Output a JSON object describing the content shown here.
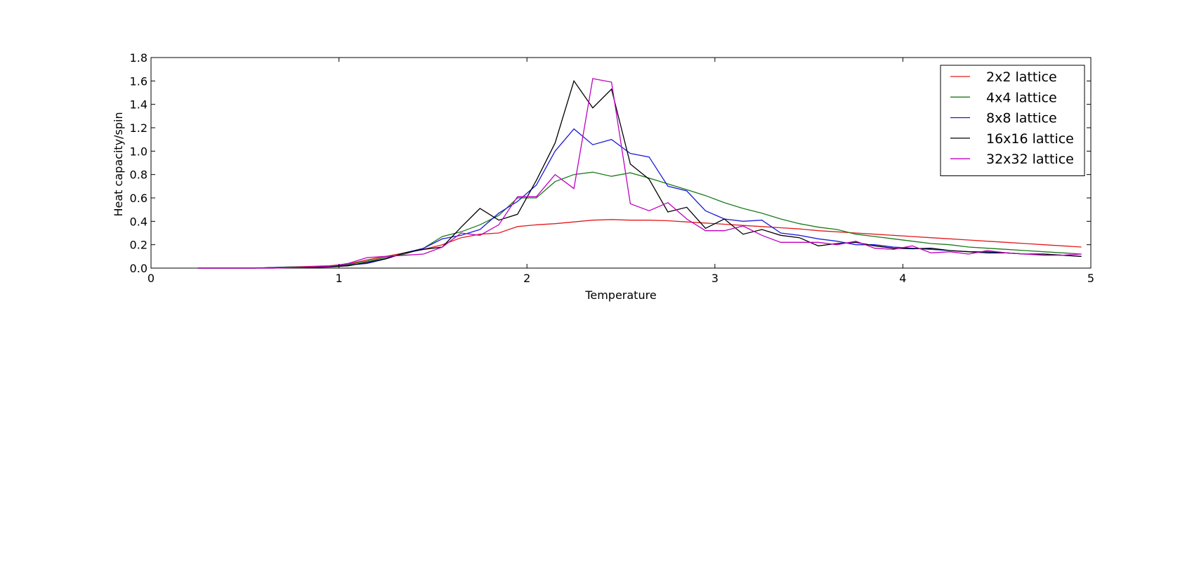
{
  "chart_data": {
    "type": "line",
    "title": "",
    "xlabel": "Temperature",
    "ylabel": "Heat capacity/spin",
    "xlim": [
      0,
      5
    ],
    "ylim": [
      0,
      1.8
    ],
    "xticks": [
      0,
      1,
      2,
      3,
      4,
      5
    ],
    "yticks": [
      0.0,
      0.2,
      0.4,
      0.6,
      0.8,
      1.0,
      1.2,
      1.4,
      1.6,
      1.8
    ],
    "xtick_labels": [
      "0",
      "1",
      "2",
      "3",
      "4",
      "5"
    ],
    "ytick_labels": [
      "0.0",
      "0.2",
      "0.4",
      "0.6",
      "0.8",
      "1.0",
      "1.2",
      "1.4",
      "1.6",
      "1.8"
    ],
    "grid": false,
    "legend_position": "top-right",
    "series": [
      {
        "name": "2x2 lattice",
        "color": "#e41a1c",
        "x": [
          0.25,
          0.35,
          0.45,
          0.55,
          0.65,
          0.75,
          0.85,
          0.95,
          1.05,
          1.15,
          1.25,
          1.35,
          1.45,
          1.55,
          1.65,
          1.75,
          1.85,
          1.95,
          2.05,
          2.15,
          2.25,
          2.35,
          2.45,
          2.55,
          2.65,
          2.75,
          2.85,
          2.95,
          3.05,
          3.15,
          3.25,
          3.35,
          3.45,
          3.55,
          3.65,
          3.75,
          3.85,
          3.95,
          4.05,
          4.15,
          4.25,
          4.35,
          4.45,
          4.55,
          4.65,
          4.75,
          4.85,
          4.95
        ],
        "y": [
          0.0,
          0.0,
          0.0,
          0.0,
          0.005,
          0.01,
          0.015,
          0.02,
          0.035,
          0.07,
          0.1,
          0.13,
          0.16,
          0.2,
          0.26,
          0.29,
          0.3,
          0.355,
          0.37,
          0.38,
          0.395,
          0.41,
          0.415,
          0.41,
          0.41,
          0.405,
          0.395,
          0.385,
          0.375,
          0.365,
          0.355,
          0.345,
          0.335,
          0.32,
          0.31,
          0.3,
          0.29,
          0.28,
          0.27,
          0.26,
          0.25,
          0.24,
          0.23,
          0.22,
          0.21,
          0.2,
          0.19,
          0.18
        ]
      },
      {
        "name": "4x4 lattice",
        "color": "#1a7a1a",
        "x": [
          0.25,
          0.35,
          0.45,
          0.55,
          0.65,
          0.75,
          0.85,
          0.95,
          1.05,
          1.15,
          1.25,
          1.35,
          1.45,
          1.55,
          1.65,
          1.75,
          1.85,
          1.95,
          2.05,
          2.15,
          2.25,
          2.35,
          2.45,
          2.55,
          2.65,
          2.75,
          2.85,
          2.95,
          3.05,
          3.15,
          3.25,
          3.35,
          3.45,
          3.55,
          3.65,
          3.75,
          3.85,
          3.95,
          4.05,
          4.15,
          4.25,
          4.35,
          4.45,
          4.55,
          4.65,
          4.75,
          4.85,
          4.95
        ],
        "y": [
          0.0,
          0.0,
          0.0,
          0.0,
          0.005,
          0.01,
          0.01,
          0.015,
          0.03,
          0.06,
          0.09,
          0.12,
          0.17,
          0.27,
          0.31,
          0.37,
          0.45,
          0.6,
          0.6,
          0.74,
          0.8,
          0.82,
          0.785,
          0.815,
          0.77,
          0.72,
          0.67,
          0.62,
          0.56,
          0.51,
          0.47,
          0.42,
          0.38,
          0.35,
          0.33,
          0.29,
          0.27,
          0.25,
          0.23,
          0.21,
          0.2,
          0.18,
          0.17,
          0.16,
          0.15,
          0.14,
          0.13,
          0.12
        ]
      },
      {
        "name": "8x8 lattice",
        "color": "#1c1cd8",
        "x": [
          0.25,
          0.35,
          0.45,
          0.55,
          0.65,
          0.75,
          0.85,
          0.95,
          1.05,
          1.15,
          1.25,
          1.35,
          1.45,
          1.55,
          1.65,
          1.75,
          1.85,
          1.95,
          2.05,
          2.15,
          2.25,
          2.35,
          2.45,
          2.55,
          2.65,
          2.75,
          2.85,
          2.95,
          3.05,
          3.15,
          3.25,
          3.35,
          3.45,
          3.55,
          3.65,
          3.75,
          3.85,
          3.95,
          4.05,
          4.15,
          4.25,
          4.35,
          4.45,
          4.55,
          4.65,
          4.75,
          4.85,
          4.95
        ],
        "y": [
          0.0,
          0.0,
          0.0,
          0.0,
          0.005,
          0.005,
          0.01,
          0.015,
          0.025,
          0.04,
          0.08,
          0.13,
          0.17,
          0.25,
          0.28,
          0.33,
          0.47,
          0.57,
          0.71,
          1.0,
          1.19,
          1.055,
          1.1,
          0.98,
          0.95,
          0.7,
          0.66,
          0.49,
          0.42,
          0.4,
          0.41,
          0.3,
          0.28,
          0.25,
          0.23,
          0.2,
          0.2,
          0.18,
          0.17,
          0.16,
          0.15,
          0.14,
          0.14,
          0.13,
          0.12,
          0.12,
          0.11,
          0.1
        ]
      },
      {
        "name": "16x16 lattice",
        "color": "#000000",
        "x": [
          0.25,
          0.35,
          0.45,
          0.55,
          0.65,
          0.75,
          0.85,
          0.95,
          1.05,
          1.15,
          1.25,
          1.35,
          1.45,
          1.55,
          1.65,
          1.75,
          1.85,
          1.95,
          2.05,
          2.15,
          2.25,
          2.35,
          2.45,
          2.55,
          2.65,
          2.75,
          2.85,
          2.95,
          3.05,
          3.15,
          3.25,
          3.35,
          3.45,
          3.55,
          3.65,
          3.75,
          3.85,
          3.95,
          4.05,
          4.15,
          4.25,
          4.35,
          4.45,
          4.55,
          4.65,
          4.75,
          4.85,
          4.95
        ],
        "y": [
          0.0,
          0.0,
          0.0,
          0.0,
          0.0,
          0.005,
          0.005,
          0.01,
          0.02,
          0.05,
          0.08,
          0.13,
          0.16,
          0.18,
          0.35,
          0.51,
          0.41,
          0.46,
          0.75,
          1.07,
          1.6,
          1.37,
          1.53,
          0.89,
          0.76,
          0.48,
          0.52,
          0.34,
          0.42,
          0.29,
          0.33,
          0.28,
          0.26,
          0.19,
          0.21,
          0.22,
          0.19,
          0.17,
          0.165,
          0.17,
          0.15,
          0.14,
          0.13,
          0.13,
          0.12,
          0.12,
          0.11,
          0.1
        ]
      },
      {
        "name": "32x32 lattice",
        "color": "#bf00bf",
        "x": [
          0.25,
          0.35,
          0.45,
          0.55,
          0.65,
          0.75,
          0.85,
          0.95,
          1.05,
          1.15,
          1.25,
          1.35,
          1.45,
          1.55,
          1.65,
          1.75,
          1.85,
          1.95,
          2.05,
          2.15,
          2.25,
          2.35,
          2.45,
          2.55,
          2.65,
          2.75,
          2.85,
          2.95,
          3.05,
          3.15,
          3.25,
          3.35,
          3.45,
          3.55,
          3.65,
          3.75,
          3.85,
          3.95,
          4.05,
          4.15,
          4.25,
          4.35,
          4.45,
          4.55,
          4.65,
          4.75,
          4.85,
          4.95
        ],
        "y": [
          0.0,
          0.0,
          0.0,
          0.0,
          0.0,
          0.005,
          0.01,
          0.015,
          0.04,
          0.09,
          0.1,
          0.11,
          0.12,
          0.18,
          0.3,
          0.28,
          0.37,
          0.61,
          0.61,
          0.8,
          0.68,
          1.62,
          1.59,
          0.55,
          0.49,
          0.56,
          0.42,
          0.32,
          0.32,
          0.36,
          0.28,
          0.22,
          0.22,
          0.22,
          0.2,
          0.23,
          0.17,
          0.16,
          0.19,
          0.13,
          0.14,
          0.12,
          0.15,
          0.13,
          0.12,
          0.11,
          0.11,
          0.12
        ]
      }
    ]
  }
}
